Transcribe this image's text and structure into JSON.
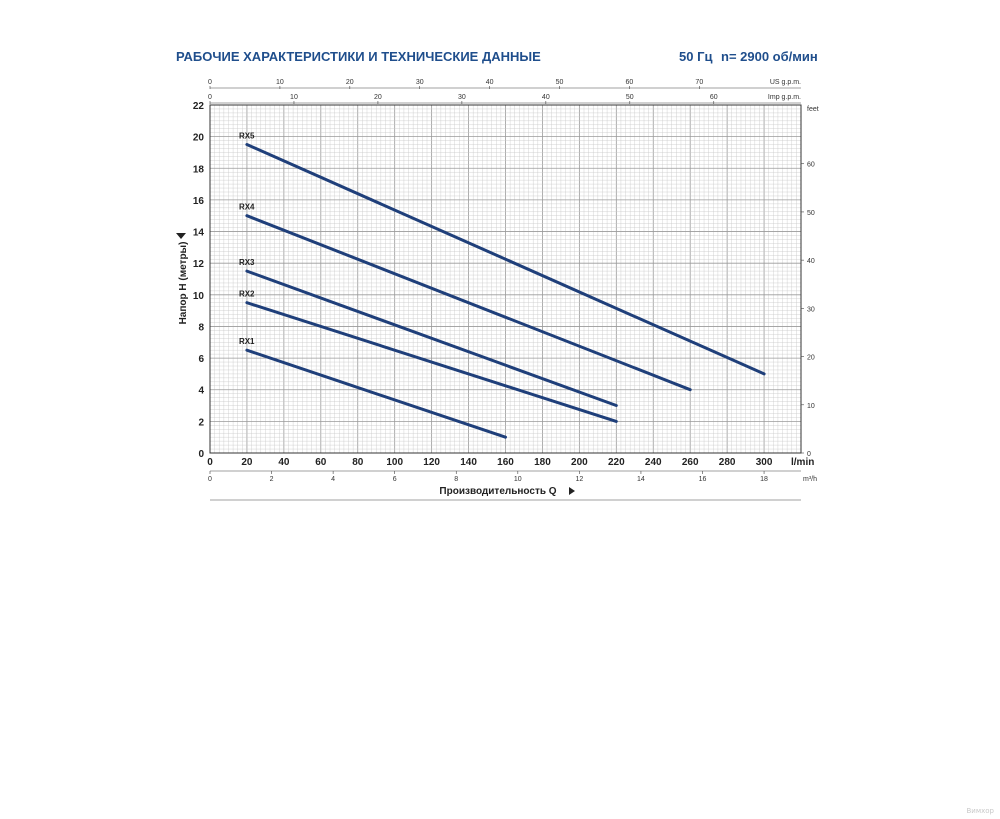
{
  "header": {
    "title": "РАБОЧИЕ ХАРАКТЕРИСТИКИ И ТЕХНИЧЕСКИЕ ДАННЫЕ",
    "frequency": "50 Гц",
    "speed": "n= 2900 об/мин"
  },
  "watermark": "Вимхор",
  "colors": {
    "curve": "#1f3f7a",
    "title": "#1f4e8c",
    "grid": "#c8c8c8",
    "axis": "#333333"
  },
  "chart_data": {
    "type": "line",
    "title": "РАБОЧИЕ ХАРАКТЕРИСТИКИ И ТЕХНИЧЕСКИЕ ДАННЫЕ",
    "xlabel": "Производительность Q",
    "ylabel": "Напор H (метры)",
    "xlim": [
      0,
      320
    ],
    "ylim": [
      0,
      22
    ],
    "x_unit": "l/min",
    "x_ticks": [
      0,
      20,
      40,
      60,
      80,
      100,
      120,
      140,
      160,
      180,
      200,
      220,
      240,
      260,
      280,
      300
    ],
    "y_ticks": [
      0,
      2,
      4,
      6,
      8,
      10,
      12,
      14,
      16,
      18,
      20,
      22
    ],
    "secondary_axes": {
      "us_gpm": {
        "unit": "US g.p.m.",
        "ticks": [
          0,
          10,
          20,
          30,
          40,
          50,
          60,
          70
        ]
      },
      "imp_gpm": {
        "unit": "Imp g.p.m.",
        "ticks": [
          0,
          10,
          20,
          30,
          40,
          50,
          60
        ]
      },
      "m3h": {
        "unit": "m³/h",
        "ticks": [
          0,
          2,
          4,
          6,
          8,
          10,
          12,
          14,
          16,
          18
        ]
      },
      "feet": {
        "unit": "feet",
        "ticks": [
          0,
          10,
          20,
          30,
          40,
          50,
          60
        ]
      }
    },
    "grid": true,
    "series": [
      {
        "name": "RX1",
        "x": [
          20,
          160
        ],
        "y": [
          6.5,
          1.0
        ]
      },
      {
        "name": "RX2",
        "x": [
          20,
          220
        ],
        "y": [
          9.5,
          2.0
        ]
      },
      {
        "name": "RX3",
        "x": [
          20,
          220
        ],
        "y": [
          11.5,
          3.0
        ]
      },
      {
        "name": "RX4",
        "x": [
          20,
          260
        ],
        "y": [
          15.0,
          4.0
        ]
      },
      {
        "name": "RX5",
        "x": [
          20,
          300
        ],
        "y": [
          19.5,
          5.0
        ]
      }
    ]
  }
}
